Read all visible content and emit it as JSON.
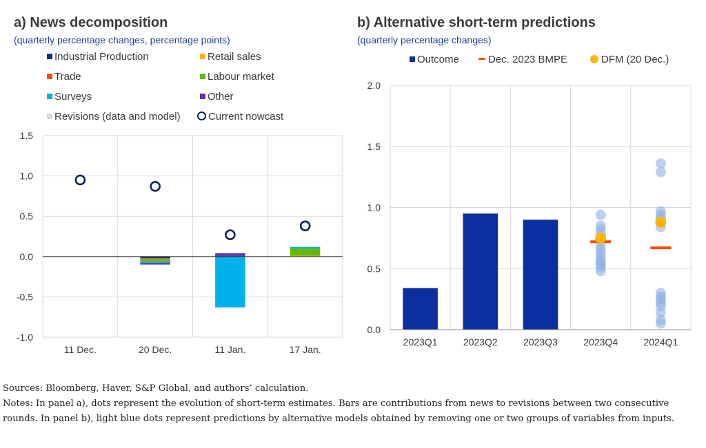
{
  "chart_data": [
    {
      "type": "bar",
      "title": "a) News decomposition",
      "subtitle": "(quarterly percentage changes, percentage points)",
      "categories": [
        "11 Dec.",
        "20 Dec.",
        "11 Jan.",
        "17 Jan."
      ],
      "ylim": [
        -1.0,
        1.5
      ],
      "yticks": [
        "1.5",
        "1.0",
        "0.5",
        "0.0",
        "-0.5",
        "-1.0"
      ],
      "grid": true,
      "stacked": true,
      "series": [
        {
          "name": "Industrial Production",
          "color": "#0b2fa0",
          "values": [
            0,
            -0.02,
            0.01,
            0
          ]
        },
        {
          "name": "Retail sales",
          "color": "#ffb400",
          "values": [
            0,
            0,
            0,
            0.01
          ]
        },
        {
          "name": "Trade",
          "color": "#ff4b00",
          "values": [
            0,
            -0.01,
            0,
            0
          ]
        },
        {
          "name": "Labour market",
          "color": "#65b800",
          "values": [
            0,
            -0.03,
            0,
            0.09
          ]
        },
        {
          "name": "Surveys",
          "color": "#00b1ea",
          "values": [
            0,
            -0.02,
            -0.63,
            0.02
          ]
        },
        {
          "name": "Other",
          "color": "#6a2ea0",
          "values": [
            0,
            -0.02,
            0.03,
            0
          ]
        },
        {
          "name": "Revisions (data and model)",
          "color": "#d9d9d9",
          "values": [
            0,
            0,
            0,
            0
          ]
        }
      ],
      "nowcast": {
        "name": "Current nowcast",
        "color": "#0b1f6b",
        "values": [
          0.95,
          0.87,
          0.27,
          0.38
        ]
      }
    },
    {
      "type": "bar",
      "title": "b) Alternative short-term predictions",
      "subtitle": "(quarterly percentage changes)",
      "categories": [
        "2023Q1",
        "2023Q2",
        "2023Q3",
        "2023Q4",
        "2024Q1"
      ],
      "ylim": [
        0.0,
        2.0
      ],
      "yticks": [
        "2.0",
        "1.5",
        "1.0",
        "0.5",
        "0.0"
      ],
      "grid": true,
      "outcome": {
        "name": "Outcome",
        "color": "#0b2fa0",
        "values": [
          0.34,
          0.95,
          0.9,
          null,
          null
        ]
      },
      "bmpe": {
        "name": "Dec. 2023 BMPE",
        "color": "#ff4b00",
        "values": [
          null,
          null,
          null,
          0.72,
          0.67
        ]
      },
      "dfm": {
        "name": "DFM (20 Dec.)",
        "color": "#ffb400",
        "values": [
          null,
          null,
          null,
          0.75,
          0.88
        ]
      },
      "alternatives": {
        "color": "#8fb1e6",
        "points": [
          [
            3,
            0.94
          ],
          [
            3,
            0.85
          ],
          [
            3,
            0.82
          ],
          [
            3,
            0.78
          ],
          [
            3,
            0.74
          ],
          [
            3,
            0.7
          ],
          [
            3,
            0.66
          ],
          [
            3,
            0.63
          ],
          [
            3,
            0.6
          ],
          [
            3,
            0.57
          ],
          [
            3,
            0.55
          ],
          [
            3,
            0.53
          ],
          [
            3,
            0.51
          ],
          [
            3,
            0.48
          ],
          [
            4,
            1.36
          ],
          [
            4,
            1.29
          ],
          [
            4,
            0.97
          ],
          [
            4,
            0.94
          ],
          [
            4,
            0.91
          ],
          [
            4,
            0.84
          ],
          [
            4,
            0.3
          ],
          [
            4,
            0.27
          ],
          [
            4,
            0.25
          ],
          [
            4,
            0.22
          ],
          [
            4,
            0.19
          ],
          [
            4,
            0.14
          ],
          [
            4,
            0.08
          ],
          [
            4,
            0.05
          ]
        ]
      }
    }
  ],
  "footer": {
    "sources": "Sources: Bloomberg, Haver, S&P Global, and authors’ calculation.",
    "notes": "Notes: In panel a), dots represent the evolution of short-term estimates. Bars are contributions from news to revisions between two consecutive rounds. In panel b), light blue dots represent predictions by alternative models obtained by removing one or two groups of variables from inputs."
  }
}
